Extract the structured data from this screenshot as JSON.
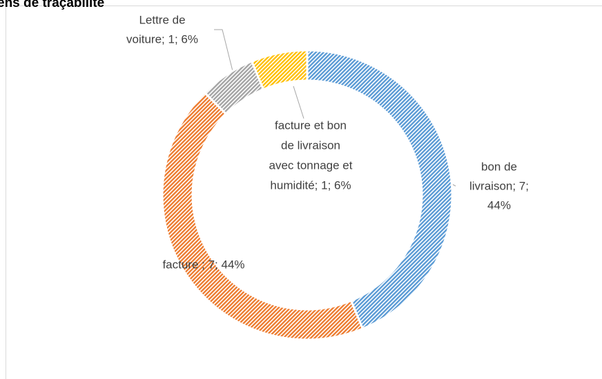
{
  "chart_data": {
    "type": "pie",
    "title": "ens de traçabilité",
    "values": [
      7,
      7,
      1,
      1
    ],
    "value_labels": [
      [
        "bon de",
        "livraison; 7;",
        "44%"
      ],
      [
        "facture ; 7; 44%"
      ],
      [
        "Lettre de",
        "voiture; 1; 6%"
      ],
      [
        "facture et bon",
        "de livraison",
        "avec tonnage et",
        "humidité; 1; 6%"
      ]
    ],
    "colors": [
      "#5b9bd5",
      "#ed7d31",
      "#a5a5a5",
      "#ffc000"
    ],
    "donut": true
  }
}
